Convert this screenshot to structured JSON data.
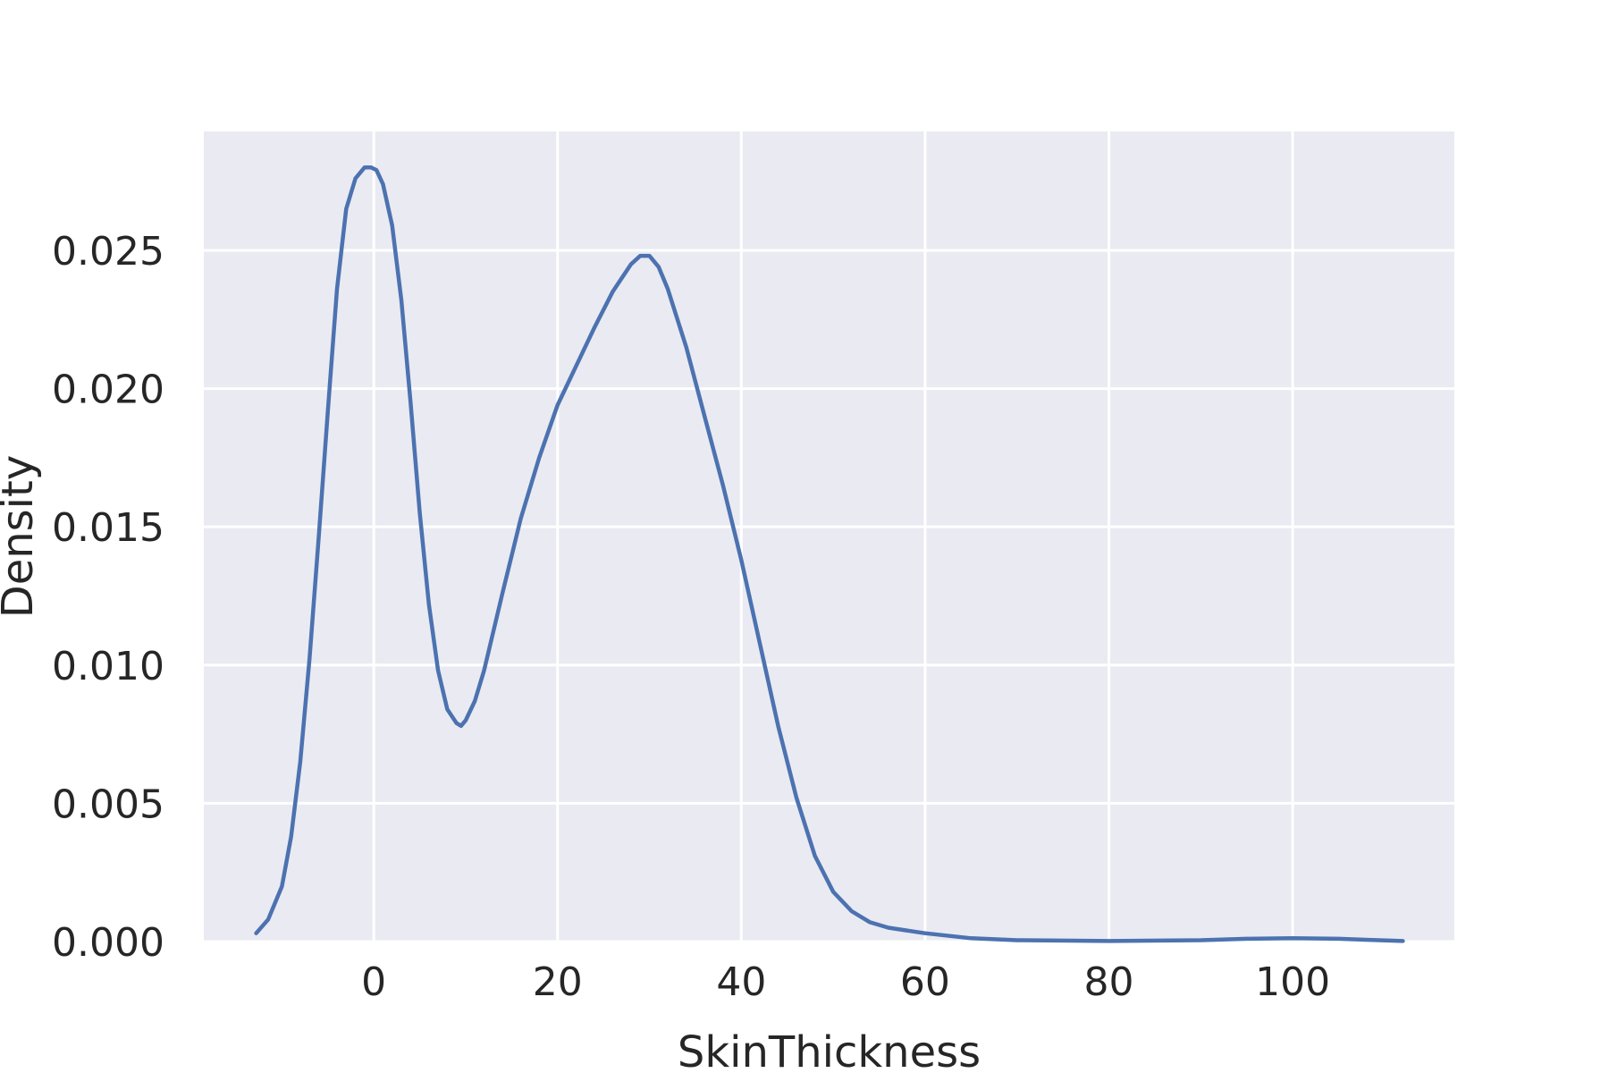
{
  "chart_data": {
    "type": "line",
    "title": "",
    "xlabel": "SkinThickness",
    "ylabel": "Density",
    "xlim": [
      -18.5,
      117.6
    ],
    "ylim": [
      0,
      0.0293
    ],
    "x_ticks": [
      0,
      20,
      40,
      60,
      80,
      100
    ],
    "x_tick_labels": [
      "0",
      "20",
      "40",
      "60",
      "80",
      "100"
    ],
    "y_ticks": [
      0,
      0.005,
      0.01,
      0.015,
      0.02,
      0.025
    ],
    "y_tick_labels": [
      "0.000",
      "0.005",
      "0.010",
      "0.015",
      "0.020",
      "0.025"
    ],
    "grid": true,
    "background": "#eaeaf2",
    "grid_color": "#ffffff",
    "line_color": "#4c72b0",
    "series": [
      {
        "x": [
          -12.8,
          -11.5,
          -10,
          -9,
          -8,
          -7,
          -6,
          -5,
          -4,
          -3,
          -2,
          -1,
          -0.3,
          0.3,
          1,
          2,
          3,
          4,
          5,
          6,
          7,
          8,
          9,
          9.5,
          10,
          11,
          12,
          14,
          16,
          18,
          20,
          22,
          24,
          26,
          28,
          29,
          30,
          31,
          32,
          34,
          36,
          38,
          40,
          42,
          44,
          46,
          48,
          50,
          52,
          54,
          56,
          58,
          60,
          65,
          70,
          80,
          90,
          95,
          100,
          105,
          112
        ],
        "y": [
          0.0003,
          0.0008,
          0.002,
          0.0038,
          0.0065,
          0.0102,
          0.0146,
          0.0192,
          0.0236,
          0.0265,
          0.0276,
          0.028,
          0.028,
          0.0279,
          0.0274,
          0.0259,
          0.0232,
          0.0195,
          0.0155,
          0.0122,
          0.0098,
          0.0084,
          0.0079,
          0.0078,
          0.008,
          0.0087,
          0.0098,
          0.0126,
          0.0153,
          0.0175,
          0.0194,
          0.0208,
          0.0222,
          0.0235,
          0.0245,
          0.0248,
          0.0248,
          0.0244,
          0.0236,
          0.0215,
          0.019,
          0.0165,
          0.0138,
          0.0108,
          0.0078,
          0.0052,
          0.0031,
          0.0018,
          0.0011,
          0.0007,
          0.0005,
          0.0004,
          0.0003,
          0.00012,
          5e-05,
          2e-05,
          5e-05,
          0.0001,
          0.00012,
          0.0001,
          2e-05
        ]
      }
    ]
  }
}
